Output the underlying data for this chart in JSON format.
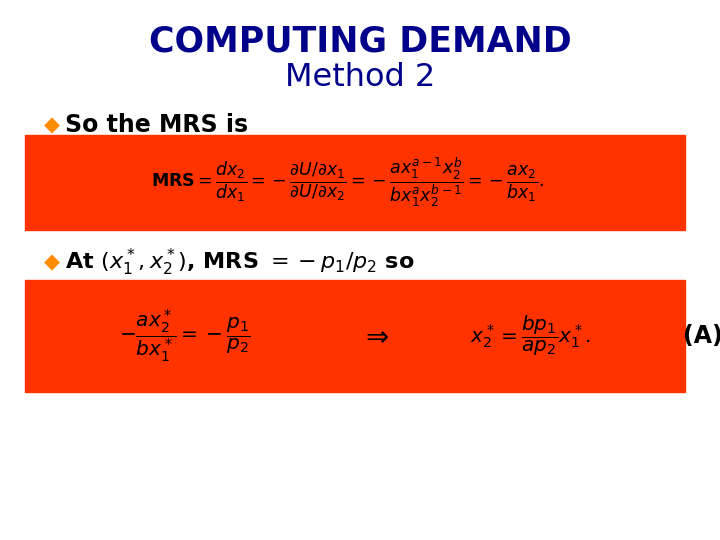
{
  "bg_color": "#ffffff",
  "title1": "COMPUTING DEMAND",
  "title2": "Method 2",
  "title_color": "#00008B",
  "bullet_color": "#FF8C00",
  "bullet1_text": "So the MRS is",
  "box_color": "#FF3300",
  "label_A": "(A)"
}
